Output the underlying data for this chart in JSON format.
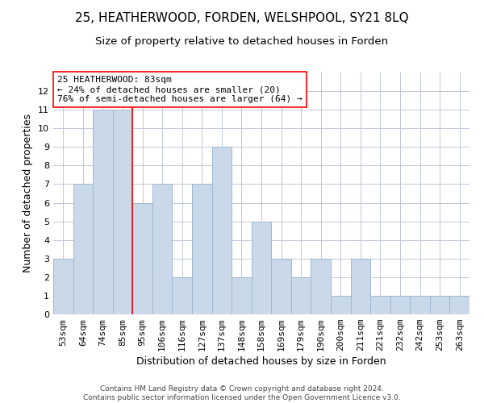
{
  "title": "25, HEATHERWOOD, FORDEN, WELSHPOOL, SY21 8LQ",
  "subtitle": "Size of property relative to detached houses in Forden",
  "xlabel": "Distribution of detached houses by size in Forden",
  "ylabel": "Number of detached properties",
  "footer1": "Contains HM Land Registry data © Crown copyright and database right 2024.",
  "footer2": "Contains public sector information licensed under the Open Government Licence v3.0.",
  "categories": [
    "53sqm",
    "64sqm",
    "74sqm",
    "85sqm",
    "95sqm",
    "106sqm",
    "116sqm",
    "127sqm",
    "137sqm",
    "148sqm",
    "158sqm",
    "169sqm",
    "179sqm",
    "190sqm",
    "200sqm",
    "211sqm",
    "221sqm",
    "232sqm",
    "242sqm",
    "253sqm",
    "263sqm"
  ],
  "values": [
    3,
    7,
    11,
    11,
    6,
    7,
    2,
    7,
    9,
    2,
    5,
    3,
    2,
    3,
    1,
    3,
    1,
    1,
    1,
    1,
    1
  ],
  "bar_color": "#c9d9ea",
  "bar_edge_color": "#a0b8d0",
  "grid_color": "#c0c8d8",
  "annotation_line1": "25 HEATHERWOOD: 83sqm",
  "annotation_line2": "← 24% of detached houses are smaller (20)",
  "annotation_line3": "76% of semi-detached houses are larger (64) →",
  "red_line_x": 3.5,
  "ylim": [
    0,
    13
  ],
  "yticks": [
    0,
    1,
    2,
    3,
    4,
    5,
    6,
    7,
    8,
    9,
    10,
    11,
    12
  ],
  "title_fontsize": 11,
  "subtitle_fontsize": 9.5,
  "ylabel_fontsize": 9,
  "xlabel_fontsize": 9,
  "tick_fontsize": 8,
  "annotation_fontsize": 8,
  "footer_fontsize": 6.5
}
